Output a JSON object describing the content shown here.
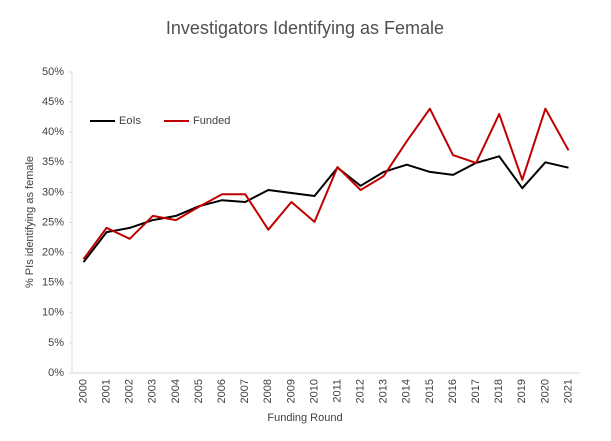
{
  "chart_data": {
    "type": "line",
    "title": "Investigators Identifying as Female",
    "x_label": "Funding Round",
    "y_label": "% PIs identifying as female",
    "categories": [
      "2000",
      "2001",
      "2002",
      "2003",
      "2004",
      "2005",
      "2006",
      "2007",
      "2008",
      "2009",
      "2010",
      "2011",
      "2012",
      "2013",
      "2014",
      "2015",
      "2016",
      "2017",
      "2018",
      "2019",
      "2020",
      "2021"
    ],
    "series": [
      {
        "name": "EoIs",
        "color": "#000000",
        "values": [
          18.4,
          23.4,
          24.1,
          25.4,
          26.1,
          27.7,
          28.7,
          28.4,
          30.4,
          29.9,
          29.4,
          34.1,
          31.1,
          33.4,
          34.6,
          33.4,
          32.9,
          34.9,
          36.0,
          30.7,
          35.0,
          34.1
        ]
      },
      {
        "name": "Funded",
        "color": "#c00000",
        "values": [
          18.9,
          24.1,
          22.3,
          26.1,
          25.4,
          27.6,
          29.7,
          29.7,
          23.8,
          28.4,
          25.1,
          34.2,
          30.4,
          32.7,
          38.5,
          43.9,
          36.2,
          34.9,
          43.0,
          32.1,
          43.9,
          37.0
        ]
      }
    ],
    "ylim": [
      0,
      50
    ],
    "yticks": [
      {
        "value": 0,
        "label": "0%"
      },
      {
        "value": 5,
        "label": "5%"
      },
      {
        "value": 10,
        "label": "10%"
      },
      {
        "value": 15,
        "label": "15%"
      },
      {
        "value": 20,
        "label": "20%"
      },
      {
        "value": 25,
        "label": "25%"
      },
      {
        "value": 30,
        "label": "30%"
      },
      {
        "value": 35,
        "label": "35%"
      },
      {
        "value": 40,
        "label": "40%"
      },
      {
        "value": 45,
        "label": "45%"
      },
      {
        "value": 50,
        "label": "50%"
      }
    ],
    "grid": false,
    "legend": "upper left"
  }
}
